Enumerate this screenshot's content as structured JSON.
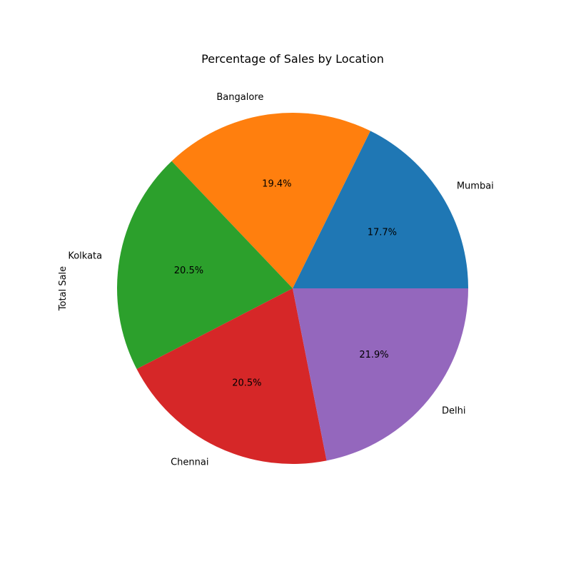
{
  "chart_data": {
    "type": "pie",
    "title": "Percentage of Sales by Location",
    "ylabel": "Total Sale",
    "categories": [
      "Mumbai",
      "Bangalore",
      "Kolkata",
      "Chennai",
      "Delhi"
    ],
    "values": [
      17.7,
      19.4,
      20.5,
      20.5,
      21.9
    ],
    "pct_labels": [
      "17.7%",
      "19.4%",
      "20.5%",
      "20.5%",
      "21.9%"
    ],
    "colors": [
      "#1f77b4",
      "#ff7f0e",
      "#2ca02c",
      "#d62728",
      "#9467bd"
    ],
    "start_angle_deg": 0,
    "direction": "counterclockwise",
    "legend": "none"
  }
}
